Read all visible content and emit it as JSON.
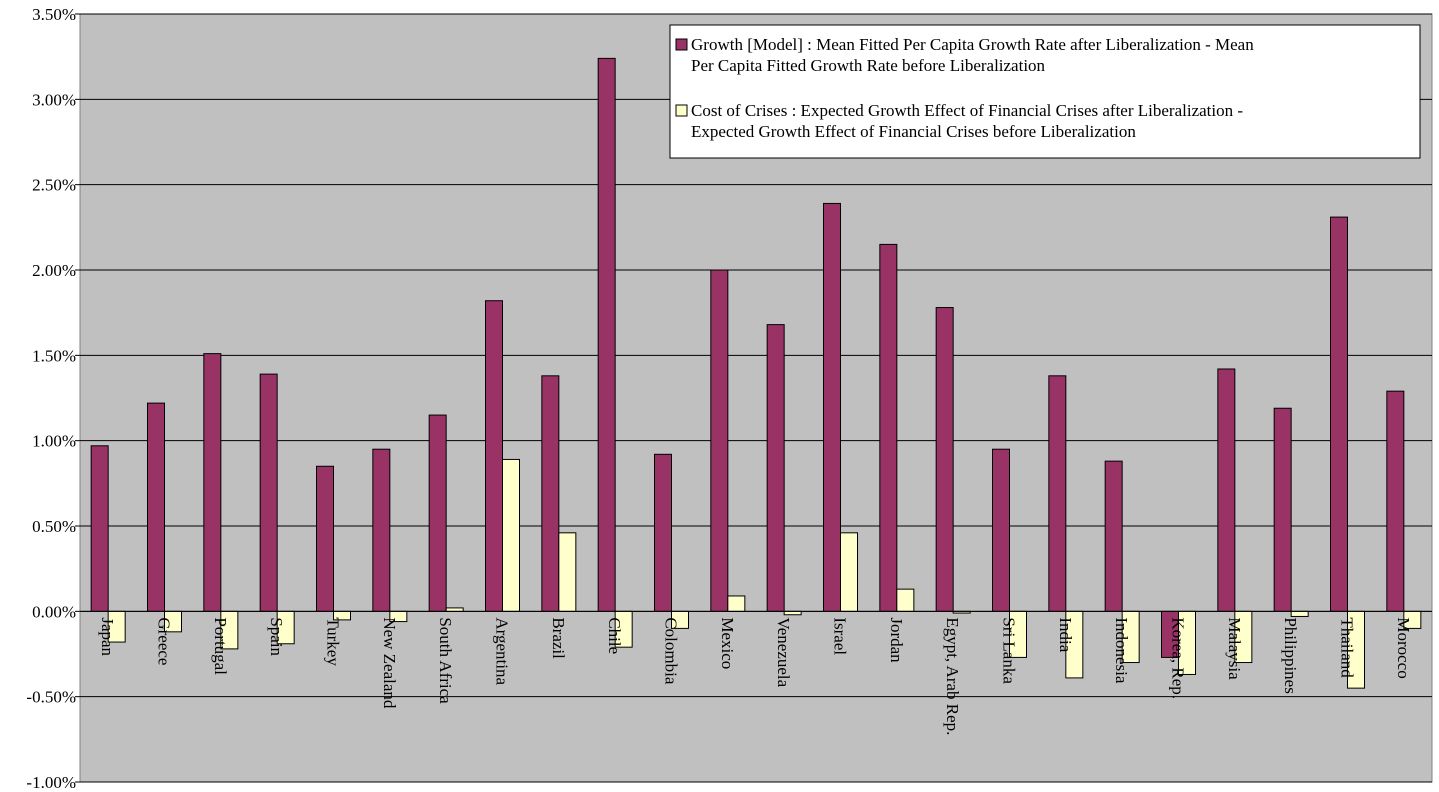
{
  "chart_data": {
    "type": "bar",
    "categories": [
      "Japan",
      "Greece",
      "Portugal",
      "Spain",
      "Turkey",
      "New Zealand",
      "South Africa",
      "Argentina",
      "Brazil",
      "Chile",
      "Colombia",
      "Mexico",
      "Venezuela",
      "Israel",
      "Jordan",
      "Egypt, Arab Rep.",
      "Sri Lanka",
      "India",
      "Indonesia",
      "Korea, Rep.",
      "Malaysia",
      "Philippines",
      "Thailand",
      "Morocco"
    ],
    "series": [
      {
        "name": [
          "Growth [Model] : Mean Fitted  Per Capita  Growth Rate after Liberalization - Mean",
          "Per Capita Fitted Growth Rate before Liberalization"
        ],
        "color": "#993366",
        "values": [
          0.97,
          1.22,
          1.51,
          1.39,
          0.85,
          0.95,
          1.15,
          1.82,
          1.38,
          3.24,
          0.92,
          2.0,
          1.68,
          2.39,
          2.15,
          1.78,
          0.95,
          1.38,
          0.88,
          -0.27,
          1.42,
          1.19,
          2.31,
          1.29
        ]
      },
      {
        "name": [
          "Cost of Crises : Expected Growth Effect of Financial Crises after Liberalization -",
          "Expected Growth  Effect of  Financial Crises before Liberalization"
        ],
        "color": "#ffffcc",
        "values": [
          -0.18,
          -0.12,
          -0.22,
          -0.19,
          -0.05,
          -0.06,
          0.02,
          0.89,
          0.46,
          -0.21,
          -0.1,
          0.09,
          -0.02,
          0.46,
          0.13,
          -0.01,
          -0.27,
          -0.39,
          -0.3,
          -0.37,
          -0.3,
          -0.03,
          -0.45,
          -0.1
        ]
      }
    ],
    "ylim": [
      -1.0,
      3.5
    ],
    "yticks": [
      {
        "value": -1.0,
        "label": "-1.00%"
      },
      {
        "value": -0.5,
        "label": "-0.50%"
      },
      {
        "value": 0,
        "label": "0.00%"
      },
      {
        "value": 0.5,
        "label": "0.50%"
      },
      {
        "value": 1.0,
        "label": "1.00%"
      },
      {
        "value": 1.5,
        "label": "1.50%"
      },
      {
        "value": 2.0,
        "label": "2.00%"
      },
      {
        "value": 2.5,
        "label": "2.50%"
      },
      {
        "value": 3.0,
        "label": "3.00%"
      },
      {
        "value": 3.5,
        "label": "3.50%"
      }
    ],
    "grid": true,
    "plot_background": "#c0c0c0",
    "legend": "top-right"
  }
}
